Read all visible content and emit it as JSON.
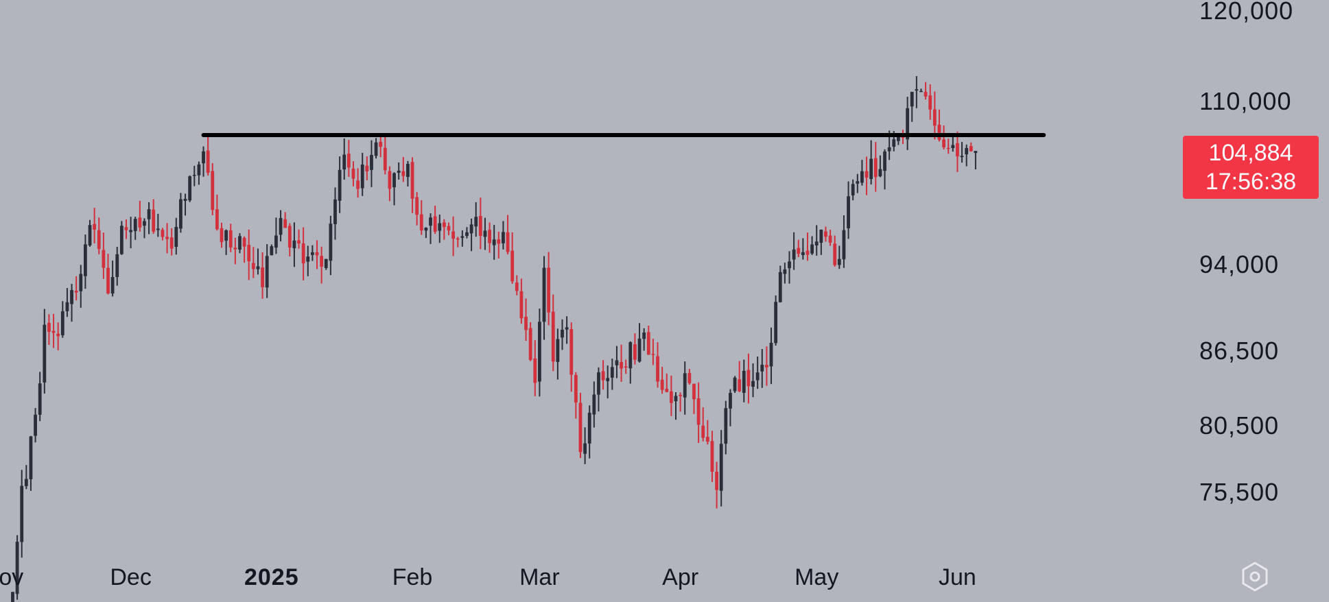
{
  "chart_data": {
    "type": "candlestick",
    "title": "",
    "xlabel": "",
    "ylabel": "",
    "y_scale": "log",
    "ylim": [
      68000,
      122500
    ],
    "y_ticks": [
      {
        "value": 120000,
        "label": "120,000"
      },
      {
        "value": 110000,
        "label": "110,000"
      },
      {
        "value": 94000,
        "label": "94,000"
      },
      {
        "value": 86500,
        "label": "86,500"
      },
      {
        "value": 80500,
        "label": "80,500"
      },
      {
        "value": 75500,
        "label": "75,500"
      }
    ],
    "x_ticks": [
      {
        "date": "2024-11-01",
        "label": "Nov",
        "bold": false
      },
      {
        "date": "2024-12-01",
        "label": "Dec",
        "bold": false
      },
      {
        "date": "2025-01-01",
        "label": "2025",
        "bold": true
      },
      {
        "date": "2025-02-01",
        "label": "Feb",
        "bold": false
      },
      {
        "date": "2025-03-01",
        "label": "Mar",
        "bold": false
      },
      {
        "date": "2025-04-01",
        "label": "Apr",
        "bold": false
      },
      {
        "date": "2025-05-01",
        "label": "May",
        "bold": false
      },
      {
        "date": "2025-06-01",
        "label": "Jun",
        "bold": false
      }
    ],
    "colors": {
      "up": "#2a2e39",
      "down": "#d1303c",
      "background": "#b2b5be",
      "level_line": "#000000",
      "badge": "#f23645"
    },
    "horizontal_line": {
      "price": 106500,
      "from": "2024-12-17",
      "to": "2025-06-20"
    },
    "last_price": {
      "value": "104,884",
      "countdown": "17:56:38"
    },
    "anchors": [
      [
        "2024-11-05",
        68500
      ],
      [
        "2024-11-07",
        75500
      ],
      [
        "2024-11-10",
        80500
      ],
      [
        "2024-11-12",
        88500
      ],
      [
        "2024-11-14",
        87500
      ],
      [
        "2024-11-19",
        92000
      ],
      [
        "2024-11-22",
        98500
      ],
      [
        "2024-11-26",
        92000
      ],
      [
        "2024-11-29",
        97000
      ],
      [
        "2024-12-05",
        98500
      ],
      [
        "2024-12-10",
        96500
      ],
      [
        "2024-12-13",
        100500
      ],
      [
        "2024-12-17",
        106000
      ],
      [
        "2024-12-20",
        97000
      ],
      [
        "2024-12-26",
        96000
      ],
      [
        "2024-12-30",
        93000
      ],
      [
        "2025-01-03",
        97500
      ],
      [
        "2025-01-08",
        95000
      ],
      [
        "2025-01-13",
        94500
      ],
      [
        "2025-01-17",
        104500
      ],
      [
        "2025-01-20",
        102000
      ],
      [
        "2025-01-24",
        105500
      ],
      [
        "2025-01-27",
        102000
      ],
      [
        "2025-01-31",
        102500
      ],
      [
        "2025-02-03",
        98000
      ],
      [
        "2025-02-08",
        96500
      ],
      [
        "2025-02-15",
        97500
      ],
      [
        "2025-02-21",
        96500
      ],
      [
        "2025-02-25",
        89000
      ],
      [
        "2025-02-28",
        84500
      ],
      [
        "2025-03-02",
        94500
      ],
      [
        "2025-03-04",
        86500
      ],
      [
        "2025-03-07",
        88500
      ],
      [
        "2025-03-10",
        78500
      ],
      [
        "2025-03-14",
        84000
      ],
      [
        "2025-03-19",
        85500
      ],
      [
        "2025-03-24",
        87500
      ],
      [
        "2025-03-28",
        84000
      ],
      [
        "2025-03-31",
        82500
      ],
      [
        "2025-04-02",
        84500
      ],
      [
        "2025-04-07",
        78500
      ],
      [
        "2025-04-09",
        76500
      ],
      [
        "2025-04-12",
        83500
      ],
      [
        "2025-04-16",
        84500
      ],
      [
        "2025-04-21",
        86500
      ],
      [
        "2025-04-23",
        93500
      ],
      [
        "2025-04-28",
        95000
      ],
      [
        "2025-05-02",
        96500
      ],
      [
        "2025-05-06",
        94500
      ],
      [
        "2025-05-08",
        99500
      ],
      [
        "2025-05-10",
        103000
      ],
      [
        "2025-05-15",
        103500
      ],
      [
        "2025-05-19",
        105500
      ],
      [
        "2025-05-22",
        111000
      ],
      [
        "2025-05-26",
        109500
      ],
      [
        "2025-05-29",
        106000
      ],
      [
        "2025-06-01",
        104000
      ],
      [
        "2025-06-05",
        104884
      ]
    ]
  }
}
